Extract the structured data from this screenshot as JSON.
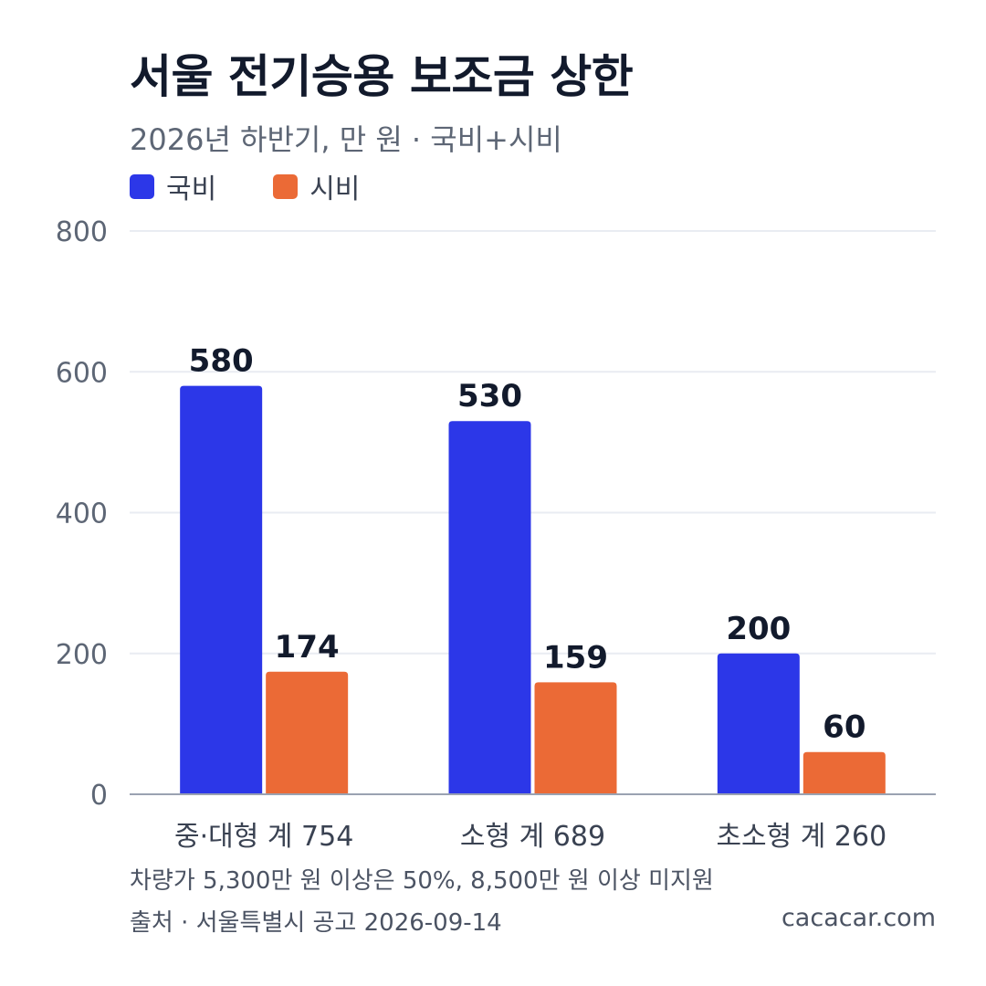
{
  "title": "서울 전기승용 보조금 상한",
  "subtitle": "2026년 하반기, 만 원 · 국비+시비",
  "note": "차량가 5,300만 원 이상은 50%, 8,500만 원 이상 미지원",
  "source": "출처 · 서울특별시 공고 2026-09-14",
  "brand": "cacacar.com",
  "colors": {
    "national": "#2c37e8",
    "city": "#eb6a36",
    "grid": "#e9ecf2",
    "axis": "#9aa2b1",
    "tick_text": "#5d6675",
    "value_text": "#121a2c",
    "category_text": "#3a4252"
  },
  "chart_data": {
    "type": "bar",
    "categories": [
      "중·대형 계 754",
      "소형 계 689",
      "초소형 계 260"
    ],
    "series": [
      {
        "name": "국비",
        "values": [
          580,
          530,
          200
        ]
      },
      {
        "name": "시비",
        "values": [
          174,
          159,
          60
        ]
      }
    ],
    "ylim": [
      0,
      800
    ],
    "yticks": [
      "0",
      "200",
      "400",
      "600",
      "800"
    ],
    "grid": true,
    "legend": "top-left"
  }
}
